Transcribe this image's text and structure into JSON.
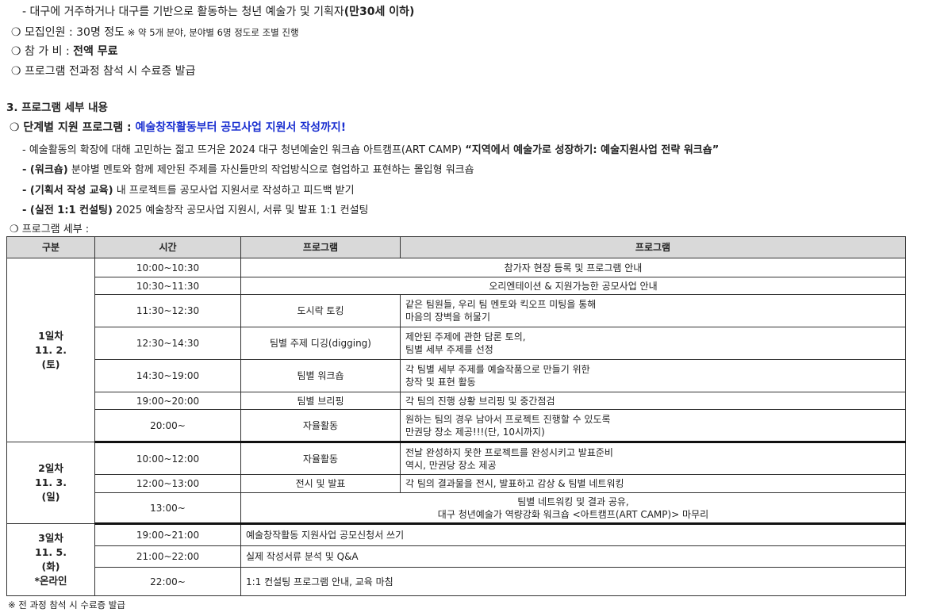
{
  "intro": {
    "target_line": "- 대구에 거주하거나 대구를 기반으로 활동하는 청년 예술가 및 기획자",
    "target_bold": "(만30세 이하)",
    "recruit_label": "❍ 모집인원 : 30명 정도",
    "recruit_note": " ※ 약 5개 분야, 분야별 6명 정도로 조별 진행",
    "fee_label": "❍ 참 가 비 : ",
    "fee_value": "전액 무료",
    "certificate": "❍ 프로그램 전과정 참석 시 수료증 발급"
  },
  "section": {
    "heading": "3. 프로그램 세부 내용",
    "support_label": "❍ 단계별 지원 프로그램 : ",
    "support_title": "예술창작활동부터 공모사업 지원서 작성까지!",
    "desc1": "- 예술활동의 확장에 대해 고민하는 젊고 뜨거운 2024 대구 청년예술인 워크숍 아트캠프(ART CAMP) ",
    "desc1_bold": "“지역에서 예술가로 성장하기: 예술지원사업 전략 워크숍”",
    "desc2_bold": "- (워크숍)",
    "desc2": " 분야별 멘토와 함께 제안된 주제를 자신들만의 작업방식으로 협업하고 표현하는 몰입형 워크숍",
    "desc3_bold": "- (기획서 작성 교육)",
    "desc3": " 내 프로젝트를 공모사업 지원서로 작성하고 피드백 받기",
    "desc4_bold": "- (실전 1:1 컨설팅)",
    "desc4": " 2025 예술창작 공모사업 지원시, 서류 및 발표 1:1 컨설팅",
    "detail_label": "❍ 프로그램 세부 :"
  },
  "table": {
    "headers": [
      "구분",
      "시간",
      "프로그램",
      "프로그램"
    ],
    "days": [
      {
        "label": [
          "1일차",
          "11. 2.",
          "(토)"
        ],
        "rows": [
          {
            "time": "10:00~10:30",
            "span": "참가자 현장 등록 및 프로그램 안내"
          },
          {
            "time": "10:30~11:30",
            "span": "오리엔테이션 & 지원가능한 공모사업 안내"
          },
          {
            "time": "11:30~12:30",
            "program": "도시락 토킹",
            "desc": [
              "같은 팀원들, 우리 팀 멘토와 킥오프 미팅을 통해",
              "마음의 장벽을 허물기"
            ]
          },
          {
            "time": "12:30~14:30",
            "program": "팀별 주제 디깅(digging)",
            "desc": [
              "제안된 주제에 관한 담론 토의,",
              "팀별 세부 주제를 선정"
            ]
          },
          {
            "time": "14:30~19:00",
            "program": "팀별 워크숍",
            "desc": [
              "각 팀별 세부 주제를 예술작품으로 만들기 위한",
              "창작 및 표현 활동"
            ]
          },
          {
            "time": "19:00~20:00",
            "program": "팀별 브리핑",
            "desc": [
              "각 팀의 진행 상황 브리핑 및 중간점검"
            ]
          },
          {
            "time": "20:00~",
            "program": "자율활동",
            "desc": [
              "원하는 팀의 경우 남아서 프로젝트 진행할 수 있도록",
              "만권당 장소 제공!!!(단, 10시까지)"
            ]
          }
        ]
      },
      {
        "label": [
          "2일차",
          "11. 3.",
          "(일)"
        ],
        "rows": [
          {
            "time": "10:00~12:00",
            "program": "자율활동",
            "desc": [
              "전날 완성하지 못한 프로젝트를 완성시키고 발표준비",
              "역시, 만권당 장소 제공"
            ]
          },
          {
            "time": "12:00~13:00",
            "program": "전시 및 발표",
            "desc": [
              "각 팀의 결과물을 전시, 발표하고 감상 & 팀별 네트워킹"
            ]
          },
          {
            "time": "13:00~",
            "span2": [
              "팀별 네트워킹 및 결과 공유,",
              "대구 청년예술가 역량강화 워크숍 <아트캠프(ART CAMP)> 마무리"
            ]
          }
        ]
      },
      {
        "label": [
          "3일차",
          "11. 5.",
          "(화)",
          "*온라인"
        ],
        "rows": [
          {
            "time": "19:00~21:00",
            "left": "예술창작활동 지원사업 공모신청서 쓰기"
          },
          {
            "time": "21:00~22:00",
            "left": "실제 작성서류 분석 및 Q&A"
          },
          {
            "time": "22:00~",
            "left": "1:1 컨설팅 프로그램 안내, 교육 마침"
          }
        ]
      }
    ]
  },
  "footnote": "※ 전 과정 참석 시 수료증 발급"
}
